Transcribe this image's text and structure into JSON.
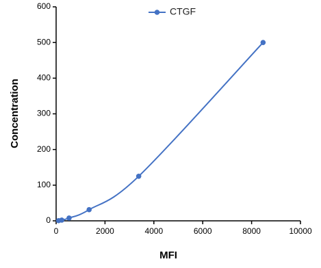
{
  "chart_data": {
    "type": "line",
    "x_label": "MFI",
    "y_label": "Concentration",
    "x": [
      100,
      230,
      530,
      1350,
      3380,
      8470
    ],
    "series": [
      {
        "name": "CTGF",
        "color": "#4472c4",
        "values": [
          0.49,
          1.95,
          7.81,
          31.25,
          125,
          500
        ]
      }
    ],
    "xlim": [
      0,
      10000
    ],
    "xticks": [
      0,
      2000,
      4000,
      6000,
      8000,
      10000
    ],
    "ylim": [
      0,
      600
    ],
    "yticks": [
      0,
      100,
      200,
      300,
      400,
      500,
      600
    ],
    "grid": false,
    "legend": "top"
  }
}
